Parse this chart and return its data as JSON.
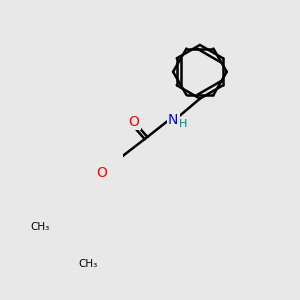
{
  "bg_color": "#e8e8e8",
  "bond_color": "#000000",
  "bond_width": 1.8,
  "atom_colors": {
    "O": "#ff0000",
    "N": "#0000ff",
    "H": "#008080",
    "C": "#000000"
  },
  "font_size_atom": 10,
  "font_size_H": 8
}
